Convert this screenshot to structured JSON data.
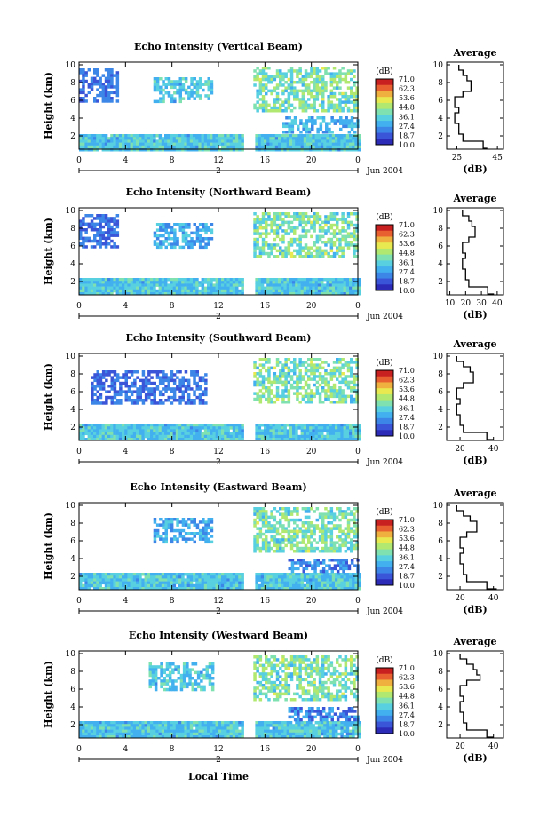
{
  "figure": {
    "xlabel": "Local Time",
    "time_ticks": [
      "0",
      "4",
      "8",
      "12",
      "16",
      "20",
      "0"
    ],
    "date_marker": "2",
    "date_label": "Jun 2004",
    "ylabel": "Height (km)",
    "height_ticks": [
      "2",
      "4",
      "6",
      "8",
      "10"
    ],
    "colorbar_unit": "(dB)",
    "colorbar_labels": [
      "71.0",
      "62.3",
      "53.6",
      "44.8",
      "36.1",
      "27.4",
      "18.7",
      "10.0"
    ],
    "colormap": [
      "#2b2bb8",
      "#3b55d8",
      "#3c86e8",
      "#42b0ee",
      "#58d0e0",
      "#7fe0b0",
      "#b0e870",
      "#e8e850",
      "#f0b040",
      "#e86030",
      "#c82020"
    ],
    "average_title": "Average",
    "average_xlabel": "(dB)"
  },
  "chart_data": [
    {
      "type": "heatmap",
      "title": "Echo Intensity (Vertical Beam)",
      "xlabel": "",
      "ylabel": "Height (km)",
      "xlim": [
        0,
        24
      ],
      "ylim": [
        0.5,
        10.3
      ],
      "colorbar_range": [
        10.0,
        71.0
      ],
      "data_gap_hours": [
        14.0,
        15.0
      ],
      "echo_regions": [
        {
          "t0": 0,
          "t1": 24,
          "h0": 0.6,
          "h1": 2.2,
          "level": [
            25,
            40
          ]
        },
        {
          "t0": 6.4,
          "t1": 11.4,
          "h0": 5.8,
          "h1": 8.6,
          "level": [
            25,
            40
          ]
        },
        {
          "t0": 15.0,
          "t1": 24,
          "h0": 4.8,
          "h1": 9.8,
          "level": [
            30,
            50
          ]
        },
        {
          "t0": 17.5,
          "t1": 24,
          "h0": 2.4,
          "h1": 4.2,
          "level": [
            20,
            35
          ]
        },
        {
          "t0": 0,
          "t1": 3.2,
          "h0": 6.0,
          "h1": 9.6,
          "level": [
            15,
            25
          ]
        }
      ]
    },
    {
      "type": "line",
      "title": "Average",
      "xlabel": "(dB)",
      "ylabel": "",
      "xticks": [
        "25",
        "45"
      ],
      "xlim": [
        20,
        48
      ],
      "yticks": [
        "2",
        "4",
        "6",
        "8",
        "10"
      ],
      "ylim": [
        0.5,
        10.3
      ],
      "x": [
        40,
        38,
        28,
        26,
        26,
        24,
        24,
        26,
        24,
        24,
        28,
        32,
        32,
        30,
        28,
        26
      ],
      "y": [
        0.6,
        1.4,
        2.2,
        2.8,
        3.4,
        4.0,
        4.6,
        5.2,
        5.6,
        6.4,
        7.0,
        7.6,
        8.2,
        8.8,
        9.4,
        10.0
      ]
    },
    {
      "type": "heatmap",
      "title": "Echo Intensity (Northward Beam)",
      "xlabel": "",
      "ylabel": "Height (km)",
      "xlim": [
        0,
        24
      ],
      "ylim": [
        0.5,
        10.3
      ],
      "colorbar_range": [
        10.0,
        71.0
      ],
      "data_gap_hours": [
        14.0,
        15.0
      ],
      "echo_regions": [
        {
          "t0": 0,
          "t1": 24,
          "h0": 0.6,
          "h1": 2.4,
          "level": [
            25,
            40
          ]
        },
        {
          "t0": 6.4,
          "t1": 11.4,
          "h0": 5.8,
          "h1": 8.6,
          "level": [
            20,
            35
          ]
        },
        {
          "t0": 15.0,
          "t1": 24,
          "h0": 4.8,
          "h1": 9.8,
          "level": [
            30,
            50
          ]
        },
        {
          "t0": 0,
          "t1": 3.2,
          "h0": 6.0,
          "h1": 9.6,
          "level": [
            15,
            25
          ]
        }
      ]
    },
    {
      "type": "line",
      "title": "Average",
      "xlabel": "(dB)",
      "ylabel": "",
      "xticks": [
        "10",
        "20",
        "30",
        "40"
      ],
      "xlim": [
        8,
        44
      ],
      "yticks": [
        "2",
        "4",
        "6",
        "8",
        "10"
      ],
      "ylim": [
        0.5,
        10.3
      ],
      "x": [
        38,
        34,
        22,
        20,
        20,
        18,
        18,
        20,
        18,
        18,
        22,
        26,
        26,
        24,
        22,
        18
      ],
      "y": [
        0.6,
        1.4,
        2.2,
        2.8,
        3.4,
        4.0,
        4.6,
        5.2,
        5.6,
        6.4,
        7.0,
        7.6,
        8.2,
        8.8,
        9.4,
        10.0
      ]
    },
    {
      "type": "heatmap",
      "title": "Echo Intensity (Southward Beam)",
      "xlabel": "",
      "ylabel": "Height (km)",
      "xlim": [
        0,
        24
      ],
      "ylim": [
        0.5,
        10.3
      ],
      "colorbar_range": [
        10.0,
        71.0
      ],
      "data_gap_hours": [
        14.0,
        15.0
      ],
      "echo_regions": [
        {
          "t0": 0,
          "t1": 24,
          "h0": 0.6,
          "h1": 2.4,
          "level": [
            25,
            40
          ]
        },
        {
          "t0": 1.0,
          "t1": 11.0,
          "h0": 4.8,
          "h1": 8.4,
          "level": [
            15,
            25
          ]
        },
        {
          "t0": 15.0,
          "t1": 24,
          "h0": 5.0,
          "h1": 9.8,
          "level": [
            30,
            50
          ]
        }
      ]
    },
    {
      "type": "line",
      "title": "Average",
      "xlabel": "(dB)",
      "ylabel": "",
      "xticks": [
        "20",
        "40"
      ],
      "xlim": [
        12,
        46
      ],
      "yticks": [
        "2",
        "4",
        "6",
        "8",
        "10"
      ],
      "ylim": [
        0.5,
        10.3
      ],
      "x": [
        40,
        36,
        22,
        20,
        20,
        18,
        18,
        20,
        18,
        18,
        22,
        28,
        28,
        26,
        22,
        18
      ],
      "y": [
        0.6,
        1.4,
        2.2,
        2.8,
        3.4,
        4.0,
        4.6,
        5.2,
        5.6,
        6.4,
        7.0,
        7.6,
        8.2,
        8.8,
        9.4,
        10.0
      ]
    },
    {
      "type": "heatmap",
      "title": "Echo Intensity (Eastward Beam)",
      "xlabel": "",
      "ylabel": "Height (km)",
      "xlim": [
        0,
        24
      ],
      "ylim": [
        0.5,
        10.3
      ],
      "colorbar_range": [
        10.0,
        71.0
      ],
      "data_gap_hours": [
        14.0,
        15.0
      ],
      "echo_regions": [
        {
          "t0": 0,
          "t1": 24,
          "h0": 0.6,
          "h1": 2.4,
          "level": [
            25,
            40
          ]
        },
        {
          "t0": 6.4,
          "t1": 11.4,
          "h0": 5.8,
          "h1": 8.6,
          "level": [
            20,
            35
          ]
        },
        {
          "t0": 15.0,
          "t1": 24,
          "h0": 4.8,
          "h1": 9.8,
          "level": [
            30,
            50
          ]
        },
        {
          "t0": 18.0,
          "t1": 24,
          "h0": 2.4,
          "h1": 4.0,
          "level": [
            15,
            30
          ]
        }
      ]
    },
    {
      "type": "line",
      "title": "Average",
      "xlabel": "(dB)",
      "ylabel": "",
      "xticks": [
        "20",
        "40"
      ],
      "xlim": [
        12,
        46
      ],
      "yticks": [
        "2",
        "4",
        "6",
        "8",
        "10"
      ],
      "ylim": [
        0.5,
        10.3
      ],
      "x": [
        42,
        36,
        24,
        22,
        22,
        20,
        20,
        22,
        20,
        20,
        24,
        30,
        30,
        26,
        22,
        18
      ],
      "y": [
        0.6,
        1.4,
        2.2,
        2.8,
        3.4,
        4.0,
        4.6,
        5.2,
        5.6,
        6.4,
        7.0,
        7.6,
        8.2,
        8.8,
        9.4,
        10.0
      ]
    },
    {
      "type": "heatmap",
      "title": "Echo Intensity (Westward Beam)",
      "xlabel": "Local Time",
      "ylabel": "Height (km)",
      "xlim": [
        0,
        24
      ],
      "ylim": [
        0.5,
        10.3
      ],
      "colorbar_range": [
        10.0,
        71.0
      ],
      "data_gap_hours": [
        14.0,
        15.0
      ],
      "echo_regions": [
        {
          "t0": 0,
          "t1": 24,
          "h0": 0.6,
          "h1": 2.4,
          "level": [
            25,
            40
          ]
        },
        {
          "t0": 6.0,
          "t1": 11.4,
          "h0": 5.8,
          "h1": 9.0,
          "level": [
            25,
            40
          ]
        },
        {
          "t0": 15.0,
          "t1": 24,
          "h0": 4.8,
          "h1": 9.8,
          "level": [
            30,
            50
          ]
        },
        {
          "t0": 18.0,
          "t1": 24,
          "h0": 2.4,
          "h1": 4.0,
          "level": [
            15,
            30
          ]
        }
      ]
    },
    {
      "type": "line",
      "title": "Average",
      "xlabel": "(dB)",
      "ylabel": "",
      "xticks": [
        "20",
        "40"
      ],
      "xlim": [
        12,
        46
      ],
      "yticks": [
        "2",
        "4",
        "6",
        "8",
        "10"
      ],
      "ylim": [
        0.5,
        10.3
      ],
      "x": [
        40,
        36,
        24,
        22,
        22,
        20,
        20,
        22,
        20,
        20,
        24,
        32,
        30,
        28,
        24,
        20
      ],
      "y": [
        0.6,
        1.4,
        2.2,
        2.8,
        3.4,
        4.0,
        4.6,
        5.2,
        5.6,
        6.4,
        7.0,
        7.6,
        8.2,
        8.8,
        9.4,
        10.0
      ]
    }
  ]
}
